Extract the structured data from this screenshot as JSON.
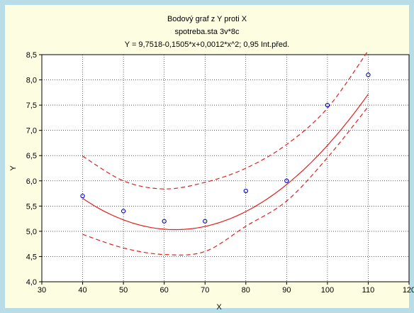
{
  "chart_data": {
    "type": "scatter",
    "title": "Bodový graf z Y proti X",
    "subtitle": "spotreba.sta 3v*8c",
    "equation": "Y = 9,7518-0,1505*x+0,0012*x^2; 0,95 Int.před.",
    "xlabel": "X",
    "ylabel": "Y",
    "xlim": [
      30,
      120
    ],
    "ylim": [
      4.0,
      8.5
    ],
    "xticks": [
      "30",
      "40",
      "50",
      "60",
      "70",
      "80",
      "90",
      "100",
      "110",
      "120"
    ],
    "yticks": [
      "4,0",
      "4,5",
      "5,0",
      "5,5",
      "6,0",
      "6,5",
      "7,0",
      "7,5",
      "8,0",
      "8,5"
    ],
    "grid": true,
    "points": [
      {
        "x": 40,
        "y": 5.7
      },
      {
        "x": 50,
        "y": 5.4
      },
      {
        "x": 60,
        "y": 5.2
      },
      {
        "x": 70,
        "y": 5.2
      },
      {
        "x": 80,
        "y": 5.8
      },
      {
        "x": 90,
        "y": 6.0
      },
      {
        "x": 100,
        "y": 7.5
      },
      {
        "x": 110,
        "y": 8.1
      }
    ],
    "fit": {
      "intercept": 9.7518,
      "b1": -0.1505,
      "b2": 0.0012,
      "x_range": [
        40,
        110
      ]
    },
    "prediction_band": {
      "x": [
        40,
        50,
        60,
        70,
        80,
        90,
        100,
        110
      ],
      "upper": [
        6.49,
        6.0,
        5.84,
        5.97,
        6.25,
        6.72,
        7.44,
        8.58
      ],
      "lower": [
        4.94,
        4.67,
        4.54,
        4.6,
        5.1,
        5.6,
        6.46,
        7.47
      ]
    },
    "colors": {
      "fit": "#e02020",
      "points": "#0000cc",
      "grid": "#000000"
    }
  }
}
